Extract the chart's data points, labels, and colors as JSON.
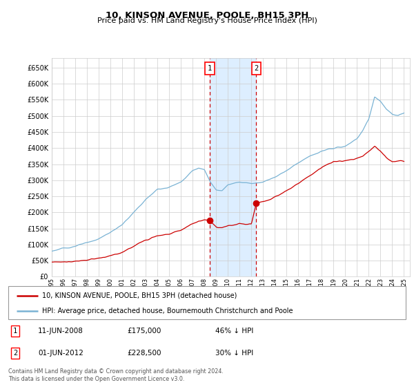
{
  "title": "10, KINSON AVENUE, POOLE, BH15 3PH",
  "subtitle": "Price paid vs. HM Land Registry's House Price Index (HPI)",
  "ylabel_ticks": [
    "£0",
    "£50K",
    "£100K",
    "£150K",
    "£200K",
    "£250K",
    "£300K",
    "£350K",
    "£400K",
    "£450K",
    "£500K",
    "£550K",
    "£600K",
    "£650K"
  ],
  "ylim": [
    0,
    680000
  ],
  "xlim_start": 1995.0,
  "xlim_end": 2025.5,
  "hpi_color": "#7ab3d4",
  "price_color": "#cc0000",
  "transaction1_date": 2008.45,
  "transaction1_price": 175000,
  "transaction1_label": "1",
  "transaction2_date": 2012.42,
  "transaction2_price": 228500,
  "transaction2_label": "2",
  "legend_line1": "10, KINSON AVENUE, POOLE, BH15 3PH (detached house)",
  "legend_line2": "HPI: Average price, detached house, Bournemouth Christchurch and Poole",
  "footnote": "Contains HM Land Registry data © Crown copyright and database right 2024.\nThis data is licensed under the Open Government Licence v3.0.",
  "table_row1_label": "1",
  "table_row1_date": "11-JUN-2008",
  "table_row1_price": "£175,000",
  "table_row1_hpi": "46% ↓ HPI",
  "table_row2_label": "2",
  "table_row2_date": "01-JUN-2012",
  "table_row2_price": "£228,500",
  "table_row2_hpi": "30% ↓ HPI",
  "background_color": "#ffffff",
  "grid_color": "#cccccc",
  "shade_color": "#ddeeff"
}
